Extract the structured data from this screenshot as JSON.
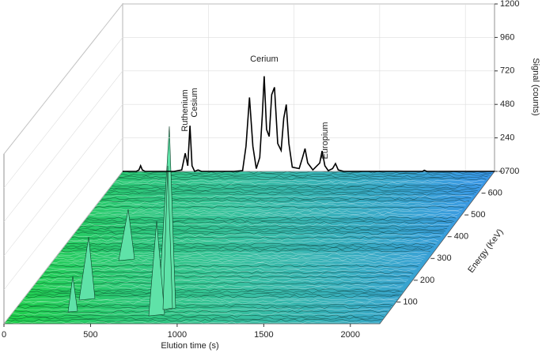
{
  "chart_data": {
    "type": "waterfall3d",
    "x_label": "Elution time (s)",
    "y_label": "Signal (counts)",
    "z_label": "Energy (KeV)",
    "xlim": [
      0,
      2170
    ],
    "xticks": [
      0,
      500,
      1000,
      1500,
      2000
    ],
    "ylim": [
      0,
      1200
    ],
    "yticks": [
      0,
      240,
      480,
      720,
      960,
      1200
    ],
    "zlim": [
      0,
      700
    ],
    "zticks": [
      100,
      200,
      300,
      400,
      500,
      600,
      700
    ],
    "annotations": [
      {
        "text": "Ruthenium",
        "x": 365
      },
      {
        "text": "Cesium",
        "x": 393
      },
      {
        "text": "Cerium",
        "x": 826
      },
      {
        "text": "Europium",
        "x": 1164
      }
    ],
    "series": [
      {
        "color": "#000000",
        "x": [
          0,
          80,
          95,
          105,
          115,
          130,
          300,
          345,
          365,
          380,
          393,
          405,
          420,
          440,
          460,
          650,
          700,
          720,
          740,
          760,
          780,
          800,
          815,
          826,
          840,
          855,
          870,
          886,
          905,
          925,
          940,
          955,
          970,
          990,
          1030,
          1050,
          1064,
          1080,
          1110,
          1150,
          1164,
          1180,
          1200,
          1225,
          1242,
          1258,
          1290,
          1750,
          1760,
          1775,
          2170
        ],
        "values": [
          0,
          0,
          10,
          40,
          10,
          0,
          0,
          10,
          130,
          40,
          327,
          40,
          0,
          10,
          0,
          0,
          5,
          180,
          530,
          180,
          20,
          100,
          400,
          682,
          300,
          250,
          550,
          603,
          200,
          150,
          380,
          479,
          200,
          30,
          20,
          100,
          163,
          60,
          10,
          60,
          146,
          40,
          5,
          20,
          56,
          10,
          0,
          0,
          8,
          0,
          0
        ]
      }
    ]
  }
}
